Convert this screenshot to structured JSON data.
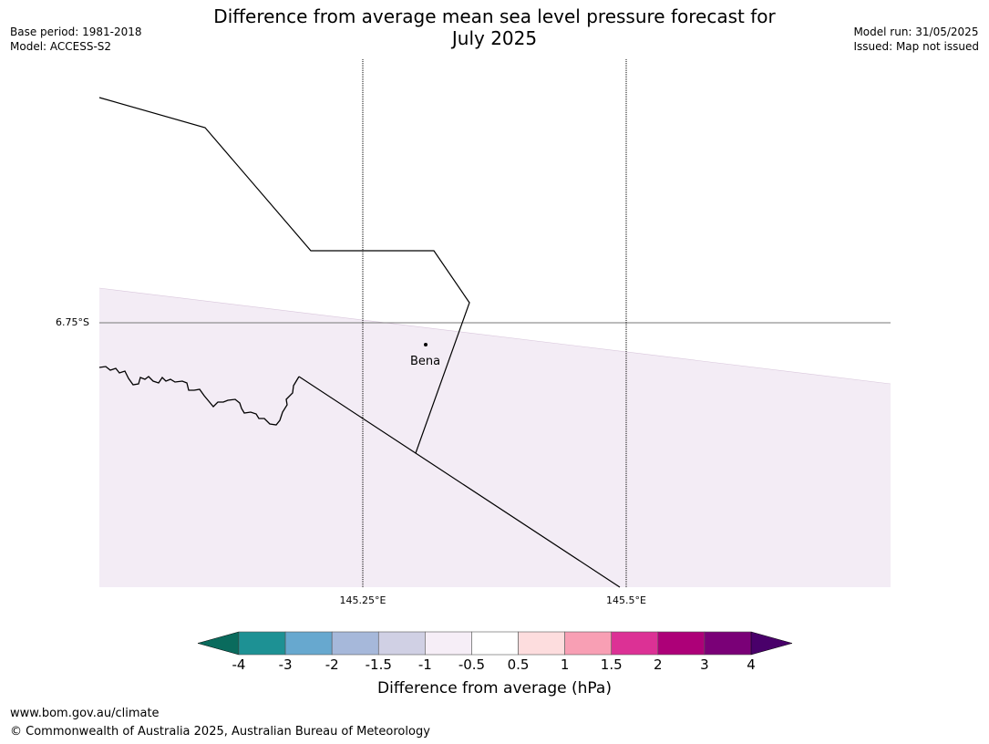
{
  "title_line1": "Difference from average mean sea level pressure forecast for",
  "title_line2": "July 2025",
  "base_period": "Base period: 1981-2018",
  "model": "Model: ACCESS-S2",
  "model_run": "Model run: 31/05/2025",
  "issued": "Issued: Map not issued",
  "map": {
    "lat_label": "6.75°S",
    "lon_labels": [
      "145.25°E",
      "145.5°E"
    ],
    "place": "Bena",
    "shading_color": "#f3ecf5"
  },
  "colorbar": {
    "ticks": [
      "-4",
      "-3",
      "-2",
      "-1.5",
      "-1",
      "-0.5",
      "0.5",
      "1",
      "1.5",
      "2",
      "3",
      "4"
    ],
    "colors": [
      "#1d9194",
      "#67a8cf",
      "#a6b8da",
      "#d0d0e4",
      "#f6eef7",
      "#ffffff",
      "#fdddde",
      "#f89fb4",
      "#dc3195",
      "#ad0078",
      "#7a0077"
    ],
    "under_color": "#0a6b5d",
    "over_color": "#49006a",
    "label": "Difference from average (hPa)"
  },
  "footer_url": "www.bom.gov.au/climate",
  "footer_copyright": "© Commonwealth of Australia 2025, Australian Bureau of Meteorology"
}
